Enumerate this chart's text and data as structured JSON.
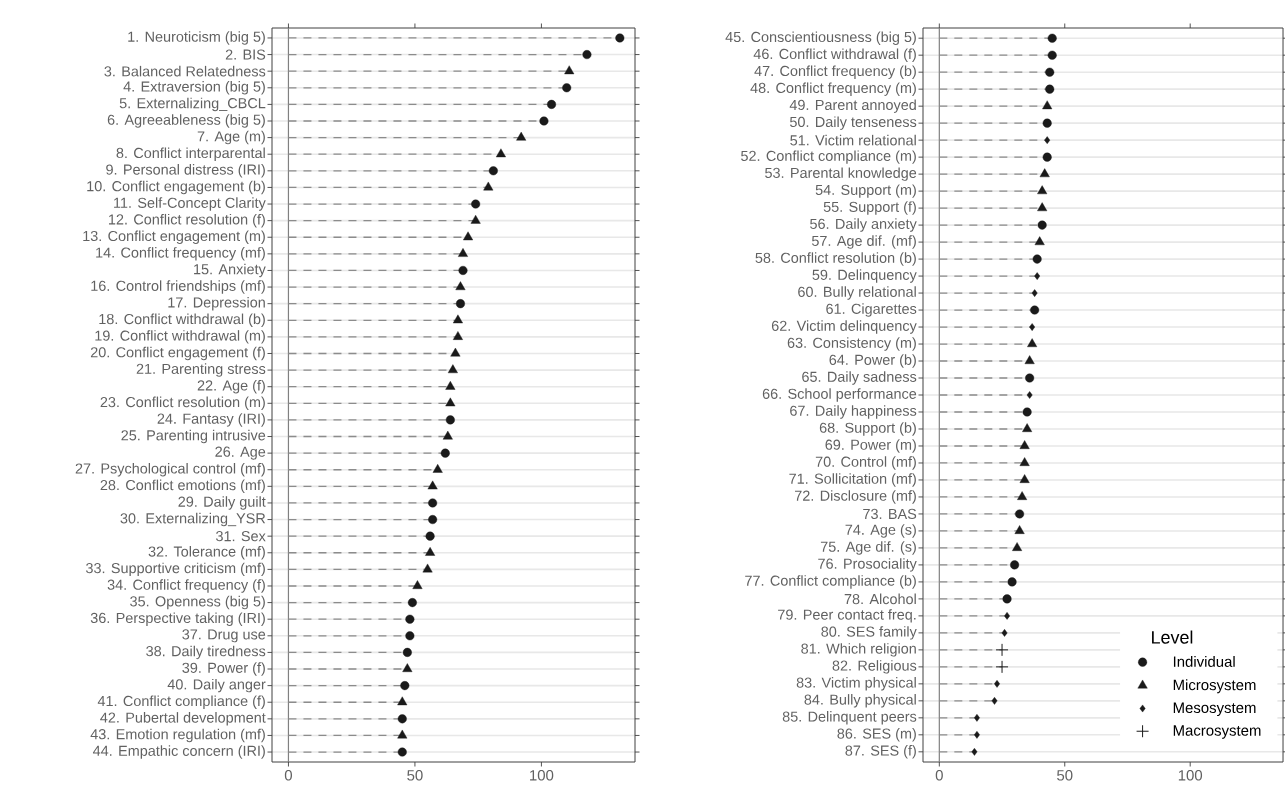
{
  "chart_data": [
    {
      "type": "lollipop",
      "orientation": "horizontal",
      "line_style": "dashed",
      "grid": "y",
      "legend": false,
      "xlim": [
        -6.5,
        137
      ],
      "xticks": [
        0,
        50,
        100
      ],
      "ref_lines": [
        {
          "axis": "x",
          "value": 0,
          "color": "#808080"
        }
      ],
      "categories": [
        "1. Neuroticism (big 5)",
        "2. BIS",
        "3. Balanced Relatedness",
        "4. Extraversion (big 5)",
        "5. Externalizing_CBCL",
        "6. Agreeableness (big 5)",
        "7. Age (m)",
        "8. Conflict interparental",
        "9. Personal distress (IRI)",
        "10. Conflict engagement (b)",
        "11. Self-Concept Clarity",
        "12. Conflict resolution (f)",
        "13. Conflict engagement (m)",
        "14. Conflict frequency (mf)",
        "15. Anxiety",
        "16. Control friendships (mf)",
        "17. Depression",
        "18. Conflict withdrawal (b)",
        "19. Conflict withdrawal (m)",
        "20. Conflict engagement (f)",
        "21. Parenting stress",
        "22. Age (f)",
        "23. Conflict resolution (m)",
        "24. Fantasy (IRI)",
        "25. Parenting intrusive",
        "26. Age",
        "27. Psychological control (mf)",
        "28. Conflict emotions (mf)",
        "29. Daily guilt",
        "30. Externalizing_YSR",
        "31. Sex",
        "32. Tolerance (mf)",
        "33. Supportive criticism (mf)",
        "34. Conflict frequency (f)",
        "35. Openness (big 5)",
        "36. Perspective taking (IRI)",
        "37. Drug use",
        "38. Daily tiredness",
        "39. Power (f)",
        "40. Daily anger",
        "41. Conflict compliance (f)",
        "42. Pubertal development",
        "43. Emotion regulation (mf)",
        "44. Empathic concern (IRI)"
      ],
      "series": [
        {
          "color": "#1a1a1a",
          "marker": "circle",
          "values": [
            131,
            118,
            null,
            110,
            104,
            101,
            null,
            null,
            81,
            null,
            74,
            null,
            null,
            null,
            69,
            null,
            68,
            null,
            null,
            null,
            null,
            null,
            null,
            64,
            null,
            62,
            null,
            null,
            57,
            57,
            56,
            null,
            null,
            null,
            49,
            48,
            48,
            47,
            null,
            46,
            null,
            45,
            null,
            45
          ]
        },
        {
          "color": "#1a1a1a",
          "marker": "triangle",
          "values": [
            null,
            null,
            111,
            null,
            null,
            null,
            92,
            84,
            null,
            79,
            null,
            74,
            71,
            69,
            null,
            68,
            null,
            67,
            67,
            66,
            65,
            64,
            64,
            null,
            63,
            null,
            59,
            57,
            null,
            null,
            null,
            56,
            55,
            51,
            null,
            null,
            null,
            null,
            47,
            null,
            45,
            null,
            45,
            null
          ]
        }
      ]
    },
    {
      "type": "lollipop",
      "orientation": "horizontal",
      "line_style": "dashed",
      "grid": "y",
      "legend": "bottom right",
      "legend_title": "Level",
      "xlim": [
        -6.5,
        137
      ],
      "xticks": [
        0,
        50,
        100
      ],
      "ref_lines": [
        {
          "axis": "x",
          "value": 0,
          "color": "#808080"
        }
      ],
      "categories": [
        "45. Conscientiousness (big 5)",
        "46. Conflict withdrawal (f)",
        "47. Conflict frequency (b)",
        "48. Conflict frequency (m)",
        "49. Parent annoyed",
        "50. Daily tenseness",
        "51. Victim relational",
        "52. Conflict compliance (m)",
        "53. Parental knowledge",
        "54. Support (m)",
        "55. Support (f)",
        "56. Daily anxiety",
        "57. Age dif. (mf)",
        "58. Conflict resolution (b)",
        "59. Delinquency",
        "60. Bully relational",
        "61. Cigarettes",
        "62. Victim delinquency",
        "63. Consistency (m)",
        "64. Power (b)",
        "65. Daily sadness",
        "66. School performance",
        "67. Daily happiness",
        "68. Support (b)",
        "69. Power (m)",
        "70. Control (mf)",
        "71. Sollicitation (mf)",
        "72. Disclosure (mf)",
        "73. BAS",
        "74. Age (s)",
        "75. Age dif. (s)",
        "76. Prosociality",
        "77. Conflict compliance (b)",
        "78. Alcohol",
        "79. Peer contact freq.",
        "80. SES family",
        "81. Which religion",
        "82. Religious",
        "83. Victim physical",
        "84. Bully physical",
        "85. Delinquent peers",
        "86. SES (m)",
        "87. SES (f)"
      ],
      "series": [
        {
          "name": "Individual",
          "color": "#1a1a1a",
          "marker": "circle",
          "values": [
            45,
            45,
            44,
            44,
            null,
            43,
            null,
            43,
            null,
            null,
            null,
            41,
            null,
            39,
            null,
            null,
            38,
            null,
            null,
            null,
            36,
            null,
            35,
            null,
            null,
            null,
            null,
            null,
            32,
            null,
            null,
            30,
            29,
            27,
            null,
            null,
            null,
            null,
            null,
            null,
            null,
            null,
            null
          ]
        },
        {
          "name": "Microsystem",
          "color": "#1a1a1a",
          "marker": "triangle",
          "values": [
            null,
            null,
            null,
            null,
            43,
            null,
            null,
            null,
            42,
            41,
            41,
            null,
            40,
            null,
            null,
            null,
            null,
            null,
            37,
            36,
            null,
            null,
            null,
            35,
            34,
            34,
            34,
            33,
            null,
            32,
            31,
            null,
            null,
            null,
            null,
            null,
            null,
            null,
            null,
            null,
            null,
            null,
            null
          ]
        },
        {
          "name": "Mesosystem",
          "color": "#1a1a1a",
          "marker": "diamond",
          "values": [
            null,
            null,
            null,
            null,
            null,
            null,
            43,
            null,
            null,
            null,
            null,
            null,
            null,
            null,
            39,
            38,
            null,
            37,
            null,
            null,
            null,
            36,
            null,
            null,
            null,
            null,
            null,
            null,
            null,
            null,
            null,
            null,
            null,
            null,
            27,
            26,
            null,
            null,
            23,
            22,
            15,
            15,
            14
          ]
        },
        {
          "name": "Macrosystem",
          "color": "#1a1a1a",
          "marker": "cross",
          "values": [
            null,
            null,
            null,
            null,
            null,
            null,
            null,
            null,
            null,
            null,
            null,
            null,
            null,
            null,
            null,
            null,
            null,
            null,
            null,
            null,
            null,
            null,
            null,
            null,
            null,
            null,
            null,
            null,
            null,
            null,
            null,
            null,
            null,
            null,
            null,
            null,
            25,
            25,
            null,
            null,
            null,
            null,
            null
          ]
        }
      ]
    }
  ]
}
